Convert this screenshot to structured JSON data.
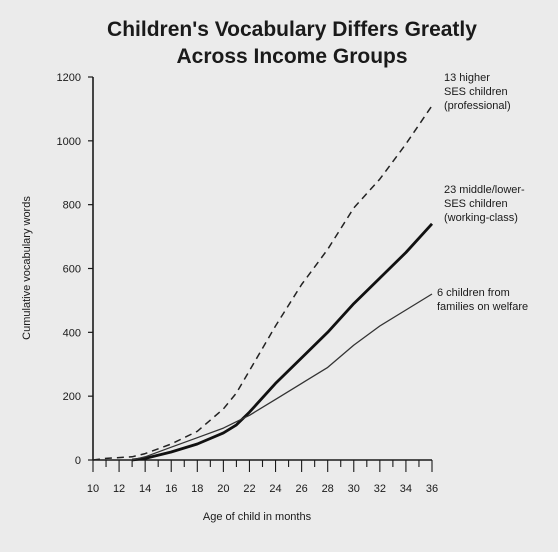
{
  "chart_data": {
    "type": "line",
    "title_lines": [
      "Children's Vocabulary Differs Greatly",
      "Across Income Groups"
    ],
    "xlabel": "Age of child in months",
    "ylabel": "Cumulative vocabulary words",
    "xlim": [
      10,
      36
    ],
    "ylim": [
      0,
      1200
    ],
    "x_ticks": [
      10,
      12,
      14,
      16,
      18,
      20,
      22,
      24,
      26,
      28,
      30,
      32,
      34,
      36
    ],
    "y_ticks": [
      0,
      200,
      400,
      600,
      800,
      1000,
      1200
    ],
    "grid": false,
    "series": [
      {
        "name_lines": [
          "13 higher",
          "SES children",
          "(professional)"
        ],
        "style": "dashed",
        "color": "#222222",
        "points": [
          [
            10,
            0
          ],
          [
            11,
            5
          ],
          [
            13,
            10
          ],
          [
            14,
            20
          ],
          [
            16,
            50
          ],
          [
            18,
            90
          ],
          [
            20,
            160
          ],
          [
            21,
            210
          ],
          [
            22,
            280
          ],
          [
            24,
            420
          ],
          [
            26,
            550
          ],
          [
            28,
            660
          ],
          [
            30,
            790
          ],
          [
            32,
            880
          ],
          [
            34,
            990
          ],
          [
            36,
            1110
          ]
        ]
      },
      {
        "name_lines": [
          "23 middle/lower-",
          "SES children",
          "(working-class)"
        ],
        "style": "thick",
        "color": "#111111",
        "points": [
          [
            13,
            0
          ],
          [
            14,
            5
          ],
          [
            16,
            25
          ],
          [
            18,
            50
          ],
          [
            20,
            85
          ],
          [
            21,
            110
          ],
          [
            22,
            150
          ],
          [
            24,
            240
          ],
          [
            26,
            320
          ],
          [
            28,
            400
          ],
          [
            30,
            490
          ],
          [
            32,
            570
          ],
          [
            34,
            650
          ],
          [
            36,
            740
          ]
        ]
      },
      {
        "name_lines": [
          "6 children from",
          "families on welfare"
        ],
        "style": "thin",
        "color": "#333333",
        "points": [
          [
            13,
            0
          ],
          [
            14,
            10
          ],
          [
            16,
            40
          ],
          [
            18,
            70
          ],
          [
            20,
            100
          ],
          [
            21,
            120
          ],
          [
            22,
            140
          ],
          [
            24,
            190
          ],
          [
            26,
            240
          ],
          [
            28,
            290
          ],
          [
            30,
            360
          ],
          [
            32,
            420
          ],
          [
            34,
            470
          ],
          [
            36,
            520
          ]
        ]
      }
    ]
  }
}
